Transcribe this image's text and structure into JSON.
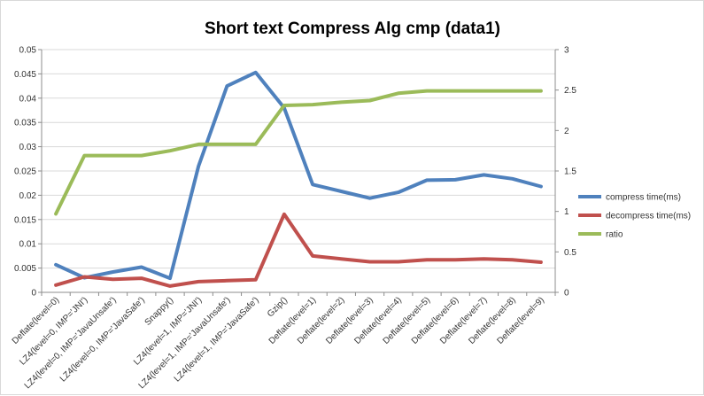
{
  "chart_data": {
    "type": "line",
    "title": "Short text Compress Alg cmp (data1)",
    "categories": [
      "Deflate(level=0)",
      "LZ4(level=0, IMP='JNI')",
      "LZ4(level=0, IMP='JavaUnsafe')",
      "LZ4(level=0, IMP='JavaSafe')",
      "Snappy()",
      "LZ4(level=1, IMP='JNI')",
      "LZ4(level=1, IMP='JavaUnsafe')",
      "LZ4(level=1, IMP='JavaSafe')",
      "Gzip()",
      "Deflate(level=1)",
      "Deflate(level=2)",
      "Deflate(level=3)",
      "Deflate(level=4)",
      "Deflate(level=5)",
      "Deflate(level=6)",
      "Deflate(level=7)",
      "Deflate(level=8)",
      "Deflate(level=9)"
    ],
    "y_left": {
      "ylim": [
        0,
        0.05
      ],
      "ticks": [
        "0",
        "0.005",
        "0.01",
        "0.015",
        "0.02",
        "0.025",
        "0.03",
        "0.035",
        "0.04",
        "0.045",
        "0.05"
      ]
    },
    "y_right": {
      "ylim": [
        0,
        3
      ],
      "ticks": [
        "0",
        "0.5",
        "1",
        "1.5",
        "2",
        "2.5",
        "3"
      ]
    },
    "series": [
      {
        "name": "compress time(ms)",
        "axis": "left",
        "color": "#4f81bd",
        "values": [
          0.0057,
          0.003,
          0.0042,
          0.0052,
          0.0029,
          0.026,
          0.0425,
          0.0453,
          0.038,
          0.0222,
          0.0208,
          0.0194,
          0.0206,
          0.0231,
          0.0232,
          0.0242,
          0.0234,
          0.0218
        ]
      },
      {
        "name": "decompress time(ms)",
        "axis": "left",
        "color": "#c0504d",
        "values": [
          0.0015,
          0.0032,
          0.0027,
          0.0029,
          0.0013,
          0.0022,
          0.0024,
          0.0026,
          0.0161,
          0.0075,
          0.0069,
          0.0063,
          0.0063,
          0.0067,
          0.0067,
          0.0069,
          0.0067,
          0.0062
        ]
      },
      {
        "name": "ratio",
        "axis": "right",
        "color": "#9bbb59",
        "values": [
          0.97,
          1.69,
          1.69,
          1.69,
          1.75,
          1.83,
          1.83,
          1.83,
          2.31,
          2.32,
          2.35,
          2.37,
          2.46,
          2.49,
          2.49,
          2.49,
          2.49,
          2.49
        ]
      }
    ],
    "grid": true,
    "legend": "right"
  }
}
